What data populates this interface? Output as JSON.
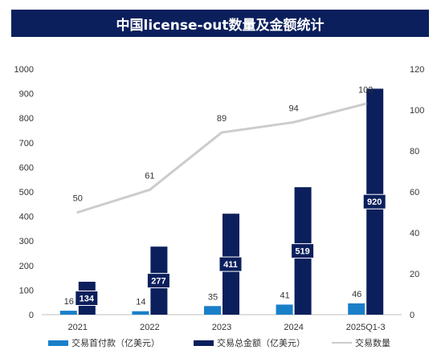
{
  "colors": {
    "title_bg": "#0b1f5c",
    "upfront": "#1a7fc9",
    "total": "#0b1f5c",
    "count": "#cccccc"
  },
  "chart_data": {
    "type": "bar",
    "title": "中国license-out数量及金额统计",
    "categories": [
      "2021",
      "2022",
      "2023",
      "2024",
      "2025Q1-3"
    ],
    "series": [
      {
        "name": "交易首付款（亿美元）",
        "type": "bar",
        "axis": "left",
        "values": [
          16,
          14,
          35,
          41,
          46
        ]
      },
      {
        "name": "交易总金额（亿美元）",
        "type": "bar",
        "axis": "left",
        "values": [
          134,
          277,
          411,
          519,
          920
        ]
      },
      {
        "name": "交易数量",
        "type": "line",
        "axis": "right",
        "values": [
          50,
          61,
          89,
          94,
          103
        ]
      }
    ],
    "ylim": [
      0,
      1000
    ],
    "y_ticks": [
      "0",
      "100",
      "200",
      "300",
      "400",
      "500",
      "600",
      "700",
      "800",
      "900",
      "1000"
    ],
    "y2lim": [
      0,
      120
    ],
    "y2_ticks": [
      "0",
      "20",
      "40",
      "60",
      "80",
      "100",
      "120"
    ],
    "legend_position": "bottom",
    "grid": false
  }
}
